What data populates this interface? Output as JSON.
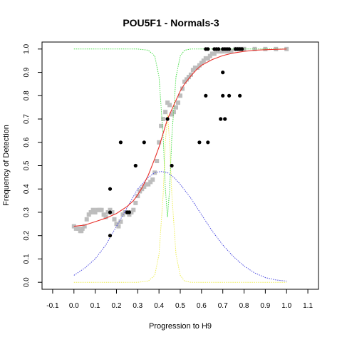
{
  "chart_data": {
    "type": "scatter",
    "title": "POU5F1 - Normals-3",
    "xlabel": "Progression to H9",
    "ylabel": "Frequency of Detection",
    "xlim": [
      -0.15,
      1.15
    ],
    "ylim": [
      -0.03,
      1.03
    ],
    "x_ticks": [
      "-0.1",
      "0.0",
      "0.1",
      "0.2",
      "0.3",
      "0.4",
      "0.5",
      "0.6",
      "0.7",
      "0.8",
      "0.9",
      "1.0",
      "1.1"
    ],
    "y_ticks": [
      "0.0",
      "0.1",
      "0.2",
      "0.3",
      "0.4",
      "0.5",
      "0.6",
      "0.7",
      "0.8",
      "0.9",
      "1.0"
    ],
    "grid": false,
    "colors": {
      "observed": "#000000",
      "smoothed": "#bdbdbd",
      "fit": "#e8302a",
      "density": "#4a4ae0",
      "green_curve": "#44dd44",
      "yellow_curve": "#eeee55"
    },
    "series": [
      {
        "kind": "points",
        "role": "observed",
        "color": "#000000",
        "x": [
          0.17,
          0.17,
          0.17,
          0.22,
          0.25,
          0.26,
          0.29,
          0.33,
          0.44,
          0.46,
          0.59,
          0.62,
          0.62,
          0.63,
          0.63,
          0.66,
          0.67,
          0.68,
          0.69,
          0.7,
          0.7,
          0.7,
          0.71,
          0.71,
          0.72,
          0.73,
          0.73,
          0.76,
          0.77,
          0.78,
          0.78,
          0.79
        ],
        "y": [
          0.4,
          0.3,
          0.2,
          0.6,
          0.3,
          0.3,
          0.5,
          0.6,
          0.7,
          0.5,
          0.6,
          1.0,
          0.8,
          0.6,
          1.0,
          1.0,
          1.0,
          1.0,
          0.7,
          1.0,
          0.9,
          0.8,
          1.0,
          0.7,
          1.0,
          0.8,
          1.0,
          1.0,
          1.0,
          0.8,
          1.0,
          1.0
        ]
      },
      {
        "kind": "points",
        "role": "smoothed",
        "color": "#bdbdbd",
        "x": [
          0.0,
          0.01,
          0.02,
          0.03,
          0.035,
          0.04,
          0.05,
          0.06,
          0.07,
          0.08,
          0.09,
          0.1,
          0.11,
          0.12,
          0.13,
          0.14,
          0.15,
          0.16,
          0.17,
          0.18,
          0.19,
          0.2,
          0.21,
          0.22,
          0.23,
          0.24,
          0.25,
          0.26,
          0.27,
          0.28,
          0.29,
          0.3,
          0.31,
          0.32,
          0.33,
          0.34,
          0.35,
          0.36,
          0.37,
          0.38,
          0.39,
          0.4,
          0.41,
          0.42,
          0.43,
          0.44,
          0.45,
          0.46,
          0.47,
          0.48,
          0.49,
          0.5,
          0.51,
          0.52,
          0.53,
          0.54,
          0.55,
          0.56,
          0.57,
          0.58,
          0.59,
          0.6,
          0.61,
          0.62,
          0.63,
          0.64,
          0.65,
          0.66,
          0.67,
          0.68,
          0.69,
          0.7,
          0.72,
          0.74,
          0.76,
          0.78,
          0.8,
          0.85,
          0.9,
          0.95,
          1.0
        ],
        "y": [
          0.24,
          0.23,
          0.23,
          0.22,
          0.22,
          0.23,
          0.24,
          0.27,
          0.29,
          0.3,
          0.31,
          0.3,
          0.31,
          0.31,
          0.31,
          0.29,
          0.28,
          0.3,
          0.31,
          0.3,
          0.27,
          0.25,
          0.24,
          0.26,
          0.29,
          0.3,
          0.3,
          0.29,
          0.3,
          0.31,
          0.34,
          0.37,
          0.39,
          0.4,
          0.41,
          0.42,
          0.42,
          0.43,
          0.44,
          0.47,
          0.52,
          0.6,
          0.67,
          0.7,
          0.73,
          0.77,
          0.76,
          0.72,
          0.73,
          0.75,
          0.77,
          0.8,
          0.83,
          0.86,
          0.87,
          0.88,
          0.89,
          0.91,
          0.92,
          0.92,
          0.93,
          0.94,
          0.95,
          0.96,
          0.96,
          0.97,
          0.98,
          0.98,
          0.99,
          0.99,
          0.99,
          0.99,
          0.99,
          0.99,
          1.0,
          1.0,
          1.0,
          1.0,
          1.0,
          1.0,
          1.0
        ]
      },
      {
        "kind": "line",
        "role": "fit",
        "color": "#e8302a",
        "x": [
          0.0,
          0.05,
          0.1,
          0.15,
          0.2,
          0.25,
          0.28,
          0.3,
          0.32,
          0.35,
          0.38,
          0.4,
          0.42,
          0.44,
          0.46,
          0.48,
          0.5,
          0.52,
          0.55,
          0.58,
          0.6,
          0.65,
          0.7,
          0.75,
          0.8,
          0.85,
          0.9,
          1.0
        ],
        "y": [
          0.24,
          0.245,
          0.26,
          0.275,
          0.295,
          0.325,
          0.35,
          0.375,
          0.405,
          0.46,
          0.53,
          0.58,
          0.64,
          0.7,
          0.74,
          0.78,
          0.82,
          0.85,
          0.885,
          0.915,
          0.93,
          0.955,
          0.972,
          0.983,
          0.99,
          0.995,
          0.997,
          1.0
        ]
      },
      {
        "kind": "line",
        "role": "density",
        "color": "#4a4ae0",
        "dashed": true,
        "x": [
          0.0,
          0.05,
          0.1,
          0.15,
          0.2,
          0.25,
          0.3,
          0.35,
          0.38,
          0.41,
          0.44,
          0.47,
          0.5,
          0.55,
          0.6,
          0.65,
          0.7,
          0.75,
          0.8,
          0.85,
          0.9,
          0.95,
          1.0
        ],
        "y": [
          0.03,
          0.06,
          0.1,
          0.16,
          0.24,
          0.32,
          0.4,
          0.45,
          0.47,
          0.475,
          0.47,
          0.45,
          0.42,
          0.36,
          0.29,
          0.22,
          0.16,
          0.11,
          0.07,
          0.04,
          0.02,
          0.01,
          0.005
        ]
      },
      {
        "kind": "line",
        "role": "green_curve",
        "color": "#44dd44",
        "dashed": true,
        "x": [
          0.0,
          0.3,
          0.35,
          0.38,
          0.4,
          0.42,
          0.43,
          0.44,
          0.45,
          0.46,
          0.48,
          0.5,
          0.52,
          0.55,
          1.0
        ],
        "y": [
          1.0,
          1.0,
          0.995,
          0.97,
          0.88,
          0.62,
          0.4,
          0.28,
          0.4,
          0.62,
          0.88,
          0.97,
          0.995,
          1.0,
          1.0
        ]
      },
      {
        "kind": "line",
        "role": "yellow_curve",
        "color": "#eeee55",
        "dashed": true,
        "x": [
          0.0,
          0.3,
          0.35,
          0.38,
          0.4,
          0.42,
          0.43,
          0.44,
          0.45,
          0.46,
          0.48,
          0.5,
          0.52,
          0.55,
          1.0
        ],
        "y": [
          0.0,
          0.0,
          0.005,
          0.03,
          0.12,
          0.38,
          0.6,
          0.72,
          0.6,
          0.38,
          0.12,
          0.03,
          0.005,
          0.0,
          0.0
        ]
      }
    ]
  }
}
